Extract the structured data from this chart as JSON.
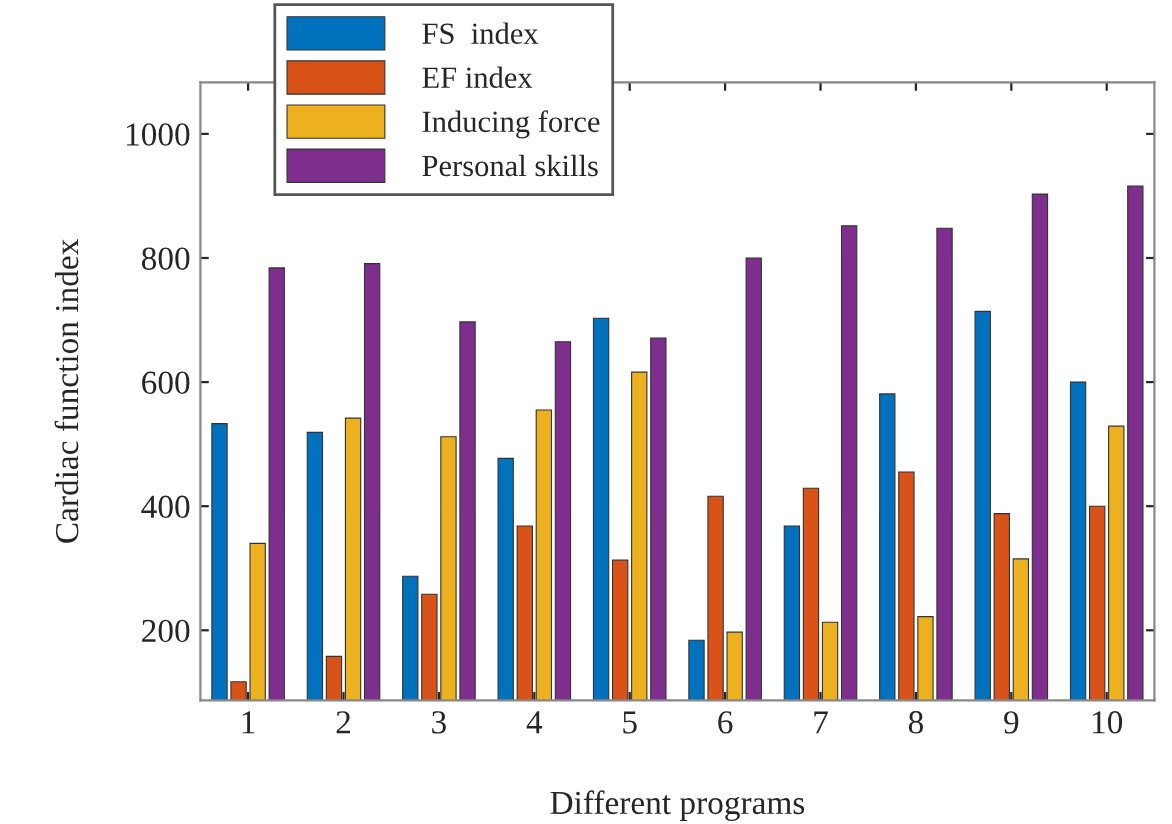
{
  "chart_data": {
    "type": "bar",
    "xlabel": "Different programs",
    "ylabel": "Cardiac function index",
    "categories": [
      "1",
      "2",
      "3",
      "4",
      "5",
      "6",
      "7",
      "8",
      "9",
      "10"
    ],
    "series": [
      {
        "name": "FS  index",
        "color": "#0072bd",
        "values": [
          533,
          519,
          287,
          477,
          703,
          184,
          368,
          581,
          714,
          600
        ]
      },
      {
        "name": "EF index",
        "color": "#d95319",
        "values": [
          117,
          158,
          258,
          368,
          313,
          416,
          429,
          455,
          388,
          400
        ]
      },
      {
        "name": "Inducing force",
        "color": "#edb120",
        "values": [
          340,
          542,
          512,
          555,
          616,
          197,
          213,
          222,
          315,
          529
        ]
      },
      {
        "name": "Personal skills",
        "color": "#7e2f8e",
        "values": [
          784,
          791,
          697,
          665,
          671,
          800,
          852,
          848,
          903,
          916
        ]
      }
    ],
    "ylim": [
      87,
      1083
    ],
    "yticks": [
      200,
      400,
      600,
      800,
      1000
    ],
    "grid": false,
    "legend": "top left"
  }
}
